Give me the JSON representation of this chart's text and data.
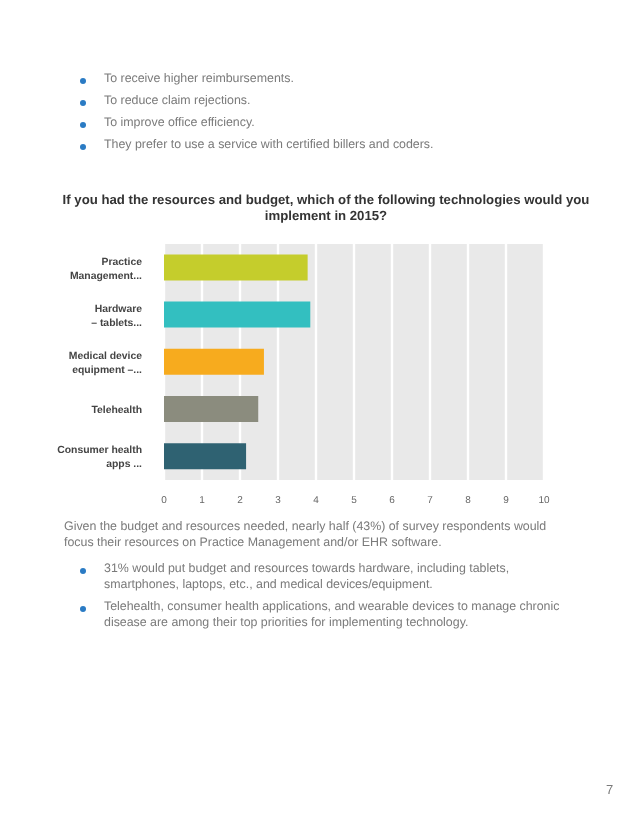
{
  "chart_data": {
    "type": "bar",
    "orientation": "horizontal",
    "title": "If you had the resources and budget, which of the following technologies would you implement in 2015?",
    "categories": [
      "Practice Management...",
      "Hardware – tablets...",
      "Medical device equipment –...",
      "Telehealth",
      "Consumer health apps ..."
    ],
    "values": [
      3.78,
      3.85,
      2.63,
      2.48,
      2.16
    ],
    "colors": [
      "#c5cd2c",
      "#33bfc0",
      "#f7ab1e",
      "#8b8c7e",
      "#2f6272"
    ],
    "xlim": [
      0,
      10
    ],
    "xticks": [
      0,
      1,
      2,
      3,
      4,
      5,
      6,
      7,
      8,
      9,
      10
    ],
    "grid": "x",
    "annotations": [
      "To receive higher reimbursements.",
      "To reduce claim rejections.",
      "To improve office efficiency.",
      "They prefer to use a service with certified billers and coders.",
      "Given the budget and resources needed, nearly half (43%) of survey respondents would focus their resources on Practice Management and/or EHR software.",
      "31% would put budget and resources towards hardware, including tablets, smartphones, laptops, etc., and medical devices/equipment.",
      "Telehealth, consumer health applications, and wearable devices to manage chronic disease are among their top priorities for implementing technology.",
      "7"
    ]
  }
}
